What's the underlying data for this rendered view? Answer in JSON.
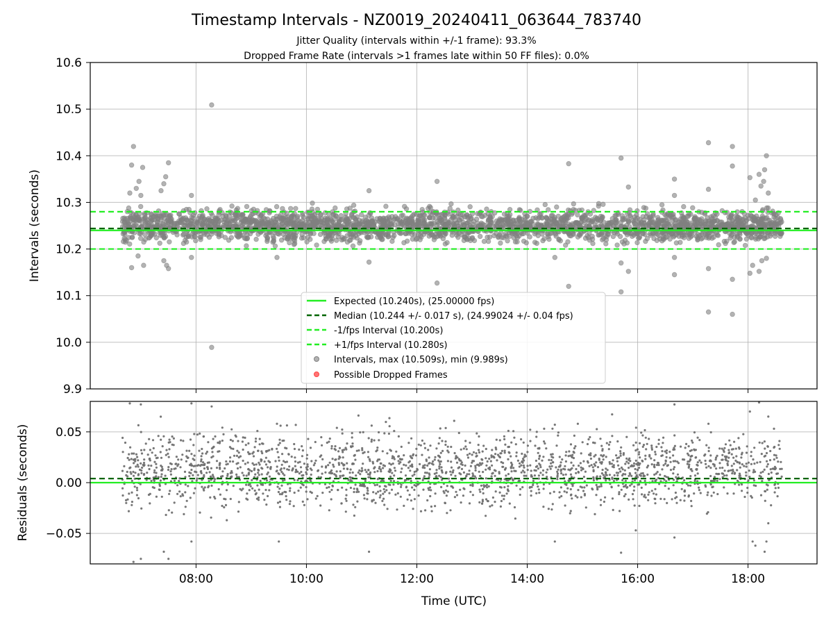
{
  "chart_data": [
    {
      "type": "scatter",
      "title": "Timestamp Intervals - NZ0019_20240411_063644_783740",
      "subtitle_lines": [
        "Jitter Quality (intervals within +/-1 frame): 93.3%",
        "Dropped Frame Rate (intervals >1 frames late within 50 FF files): 0.0%"
      ],
      "xlabel": "",
      "ylabel": "Intervals (seconds)",
      "xlim": [
        "06:05",
        "19:15"
      ],
      "ylim": [
        9.9,
        10.6
      ],
      "yticks": [
        "9.9",
        "10.0",
        "10.1",
        "10.2",
        "10.3",
        "10.4",
        "10.5",
        "10.6"
      ],
      "xticks": [
        "08:00",
        "10:00",
        "12:00",
        "14:00",
        "16:00",
        "18:00"
      ],
      "grid": true,
      "legend_position": "lower-center",
      "lines": [
        {
          "name": "Expected (10.240s), (25.00000 fps)",
          "y": 10.24,
          "color": "#22ee22",
          "style": "solid"
        },
        {
          "name": "Median (10.244 +/- 0.017 s), (24.99024 +/- 0.04 fps)",
          "y": 10.244,
          "color": "#006400",
          "style": "dashed"
        },
        {
          "name": "-1/fps Interval (10.200s)",
          "y": 10.2,
          "color": "#22ee22",
          "style": "dashed"
        },
        {
          "name": "+1/fps Interval (10.280s)",
          "y": 10.28,
          "color": "#22ee22",
          "style": "dashed"
        }
      ],
      "series": [
        {
          "name": "Intervals, max (10.509s), min (9.989s)",
          "color": "#808080",
          "time_range": [
            "06:40",
            "18:37"
          ],
          "band": [
            10.22,
            10.28
          ],
          "outliers": [
            {
              "x": "06:52",
              "y": 10.42
            },
            {
              "x": "06:50",
              "y": 10.38
            },
            {
              "x": "06:48",
              "y": 10.32
            },
            {
              "x": "06:55",
              "y": 10.33
            },
            {
              "x": "06:58",
              "y": 10.345
            },
            {
              "x": "07:02",
              "y": 10.375
            },
            {
              "x": "07:00",
              "y": 10.315
            },
            {
              "x": "06:50",
              "y": 10.16
            },
            {
              "x": "07:03",
              "y": 10.165
            },
            {
              "x": "06:57",
              "y": 10.185
            },
            {
              "x": "07:25",
              "y": 10.34
            },
            {
              "x": "07:27",
              "y": 10.355
            },
            {
              "x": "07:30",
              "y": 10.385
            },
            {
              "x": "07:22",
              "y": 10.325
            },
            {
              "x": "07:25",
              "y": 10.175
            },
            {
              "x": "07:28",
              "y": 10.165
            },
            {
              "x": "07:30",
              "y": 10.158
            },
            {
              "x": "07:55",
              "y": 10.315
            },
            {
              "x": "07:55",
              "y": 10.182
            },
            {
              "x": "08:17",
              "y": 10.509
            },
            {
              "x": "08:17",
              "y": 9.989
            },
            {
              "x": "09:28",
              "y": 10.182
            },
            {
              "x": "11:08",
              "y": 10.325
            },
            {
              "x": "11:08",
              "y": 10.172
            },
            {
              "x": "12:22",
              "y": 10.345
            },
            {
              "x": "12:22",
              "y": 10.127
            },
            {
              "x": "14:45",
              "y": 10.383
            },
            {
              "x": "14:45",
              "y": 10.12
            },
            {
              "x": "14:30",
              "y": 10.182
            },
            {
              "x": "15:42",
              "y": 10.395
            },
            {
              "x": "15:42",
              "y": 10.17
            },
            {
              "x": "15:42",
              "y": 10.108
            },
            {
              "x": "15:50",
              "y": 10.333
            },
            {
              "x": "15:50",
              "y": 10.152
            },
            {
              "x": "16:40",
              "y": 10.35
            },
            {
              "x": "16:40",
              "y": 10.315
            },
            {
              "x": "16:40",
              "y": 10.182
            },
            {
              "x": "16:40",
              "y": 10.145
            },
            {
              "x": "17:17",
              "y": 10.428
            },
            {
              "x": "17:17",
              "y": 10.328
            },
            {
              "x": "17:17",
              "y": 10.158
            },
            {
              "x": "17:17",
              "y": 10.065
            },
            {
              "x": "17:43",
              "y": 10.42
            },
            {
              "x": "17:43",
              "y": 10.378
            },
            {
              "x": "17:43",
              "y": 10.135
            },
            {
              "x": "17:43",
              "y": 10.06
            },
            {
              "x": "18:02",
              "y": 10.353
            },
            {
              "x": "18:02",
              "y": 10.148
            },
            {
              "x": "18:08",
              "y": 10.305
            },
            {
              "x": "18:12",
              "y": 10.36
            },
            {
              "x": "18:14",
              "y": 10.335
            },
            {
              "x": "18:18",
              "y": 10.37
            },
            {
              "x": "18:20",
              "y": 10.4
            },
            {
              "x": "18:22",
              "y": 10.32
            },
            {
              "x": "18:17",
              "y": 10.345
            },
            {
              "x": "18:12",
              "y": 10.152
            },
            {
              "x": "18:15",
              "y": 10.175
            },
            {
              "x": "18:20",
              "y": 10.18
            },
            {
              "x": "18:05",
              "y": 10.165
            }
          ]
        },
        {
          "name": "Possible Dropped Frames",
          "color": "#ff6666",
          "points": []
        }
      ]
    },
    {
      "type": "scatter",
      "title": "",
      "xlabel": "Time (UTC)",
      "ylabel": "Residuals (seconds)",
      "xlim": [
        "06:05",
        "19:15"
      ],
      "ylim": [
        -0.08,
        0.08
      ],
      "yticks": [
        "−0.05",
        "0.00",
        "0.05"
      ],
      "ytick_values": [
        -0.05,
        0.0,
        0.05
      ],
      "xticks": [
        "08:00",
        "10:00",
        "12:00",
        "14:00",
        "16:00",
        "18:00"
      ],
      "grid": true,
      "lines": [
        {
          "y": 0.0,
          "color": "#22ee22",
          "style": "solid"
        },
        {
          "y": 0.004,
          "color": "#006400",
          "style": "dashed"
        }
      ],
      "series": [
        {
          "color": "#707070",
          "time_range": [
            "06:40",
            "18:37"
          ],
          "band": [
            -0.02,
            0.045
          ],
          "outliers": [
            {
              "x": "06:48",
              "y": 0.078
            },
            {
              "x": "07:00",
              "y": 0.077
            },
            {
              "x": "07:55",
              "y": 0.078
            },
            {
              "x": "06:52",
              "y": -0.078
            },
            {
              "x": "07:00",
              "y": -0.075
            },
            {
              "x": "07:25",
              "y": -0.068
            },
            {
              "x": "07:30",
              "y": -0.075
            },
            {
              "x": "07:55",
              "y": -0.058
            },
            {
              "x": "08:17",
              "y": 0.075
            },
            {
              "x": "09:30",
              "y": -0.058
            },
            {
              "x": "09:28",
              "y": 0.058
            },
            {
              "x": "11:08",
              "y": -0.068
            },
            {
              "x": "14:30",
              "y": -0.058
            },
            {
              "x": "14:30",
              "y": 0.057
            },
            {
              "x": "14:55",
              "y": 0.058
            },
            {
              "x": "15:42",
              "y": -0.069
            },
            {
              "x": "15:58",
              "y": -0.047
            },
            {
              "x": "16:40",
              "y": -0.054
            },
            {
              "x": "16:40",
              "y": 0.077
            },
            {
              "x": "17:17",
              "y": 0.058
            },
            {
              "x": "18:02",
              "y": 0.07
            },
            {
              "x": "18:05",
              "y": -0.058
            },
            {
              "x": "18:08",
              "y": -0.062
            },
            {
              "x": "18:12",
              "y": 0.079
            },
            {
              "x": "18:22",
              "y": 0.065
            },
            {
              "x": "18:18",
              "y": -0.068
            },
            {
              "x": "18:20",
              "y": -0.058
            },
            {
              "x": "18:22",
              "y": -0.04
            }
          ]
        }
      ]
    }
  ]
}
